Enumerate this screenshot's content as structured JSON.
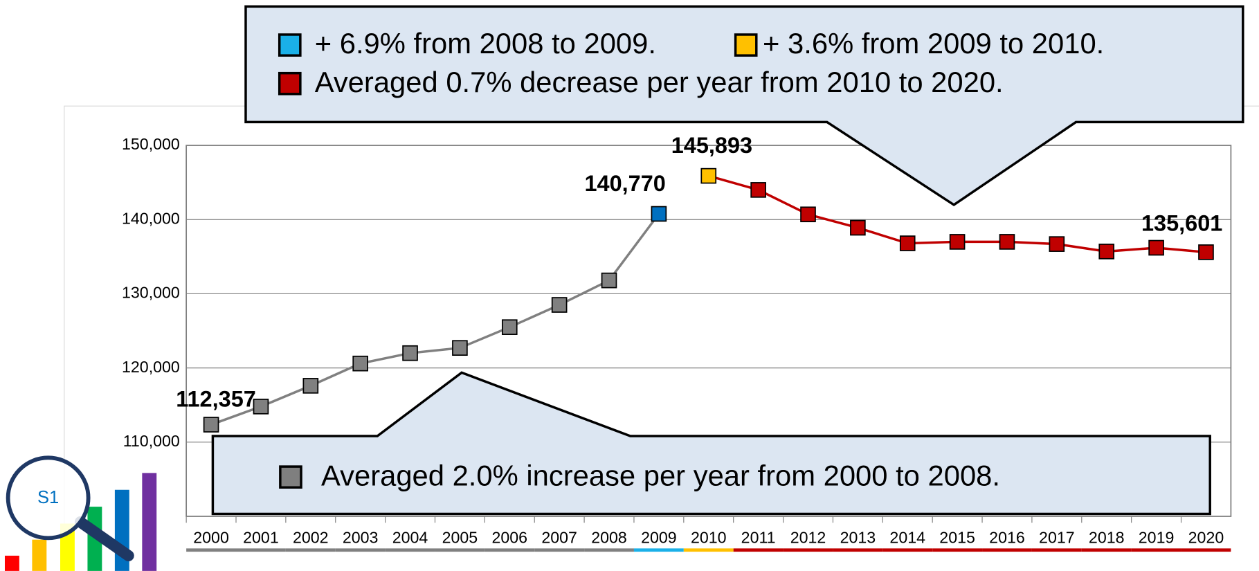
{
  "chart_data": {
    "type": "line",
    "categories": [
      "2000",
      "2001",
      "2002",
      "2003",
      "2004",
      "2005",
      "2006",
      "2007",
      "2008",
      "2009",
      "2010",
      "2011",
      "2012",
      "2013",
      "2014",
      "2015",
      "2016",
      "2017",
      "2018",
      "2019",
      "2020"
    ],
    "series": [
      {
        "color": "#808080",
        "values": [
          112357,
          114800,
          117600,
          120600,
          122000,
          122700,
          125500,
          128500,
          131800,
          140770,
          null,
          null,
          null,
          null,
          null,
          null,
          null,
          null,
          null,
          null,
          null
        ],
        "value_labels": [
          "112,357",
          null,
          null,
          null,
          null,
          null,
          null,
          null,
          null,
          "140,770",
          null,
          null,
          null,
          null,
          null,
          null,
          null,
          null,
          null,
          null,
          null
        ]
      },
      {
        "color": "#c00000",
        "values": [
          null,
          null,
          null,
          null,
          null,
          null,
          null,
          null,
          null,
          null,
          145893,
          144000,
          140700,
          138900,
          136800,
          137000,
          137000,
          136700,
          135700,
          136200,
          135601
        ],
        "value_labels": [
          null,
          null,
          null,
          null,
          null,
          null,
          null,
          null,
          null,
          null,
          "145,893",
          null,
          null,
          null,
          null,
          null,
          null,
          null,
          null,
          null,
          "135,601"
        ]
      }
    ],
    "marker_colors": [
      "#808080",
      "#808080",
      "#808080",
      "#808080",
      "#808080",
      "#808080",
      "#808080",
      "#808080",
      "#808080",
      "#0070c0",
      "#ffc000",
      "#c00000",
      "#c00000",
      "#c00000",
      "#c00000",
      "#c00000",
      "#c00000",
      "#c00000",
      "#c00000",
      "#c00000",
      "#c00000"
    ],
    "category_underline_colors": [
      "#808080",
      "#808080",
      "#808080",
      "#808080",
      "#808080",
      "#808080",
      "#808080",
      "#808080",
      "#808080",
      "#1ab0e8",
      "#ffc000",
      "#c00000",
      "#c00000",
      "#c00000",
      "#c00000",
      "#c00000",
      "#c00000",
      "#c00000",
      "#c00000",
      "#c00000",
      "#c00000"
    ],
    "ylim": [
      100000,
      150000
    ],
    "yticks": [
      {
        "value": 110000,
        "label": "110,000"
      },
      {
        "value": 120000,
        "label": "120,000"
      },
      {
        "value": 130000,
        "label": "130,000"
      },
      {
        "value": 140000,
        "label": "140,000"
      },
      {
        "value": 150000,
        "label": "150,000"
      }
    ],
    "grid": true,
    "annotations": {
      "top": [
        "+ 6.9% from 2008 to 2009.",
        "+ 3.6% from 2009 to 2010.",
        "Averaged 0.7% decrease per year from 2010 to 2020."
      ],
      "bottom": "Averaged 2.0% increase per year from 2000 to 2008."
    },
    "logo": "S1"
  }
}
